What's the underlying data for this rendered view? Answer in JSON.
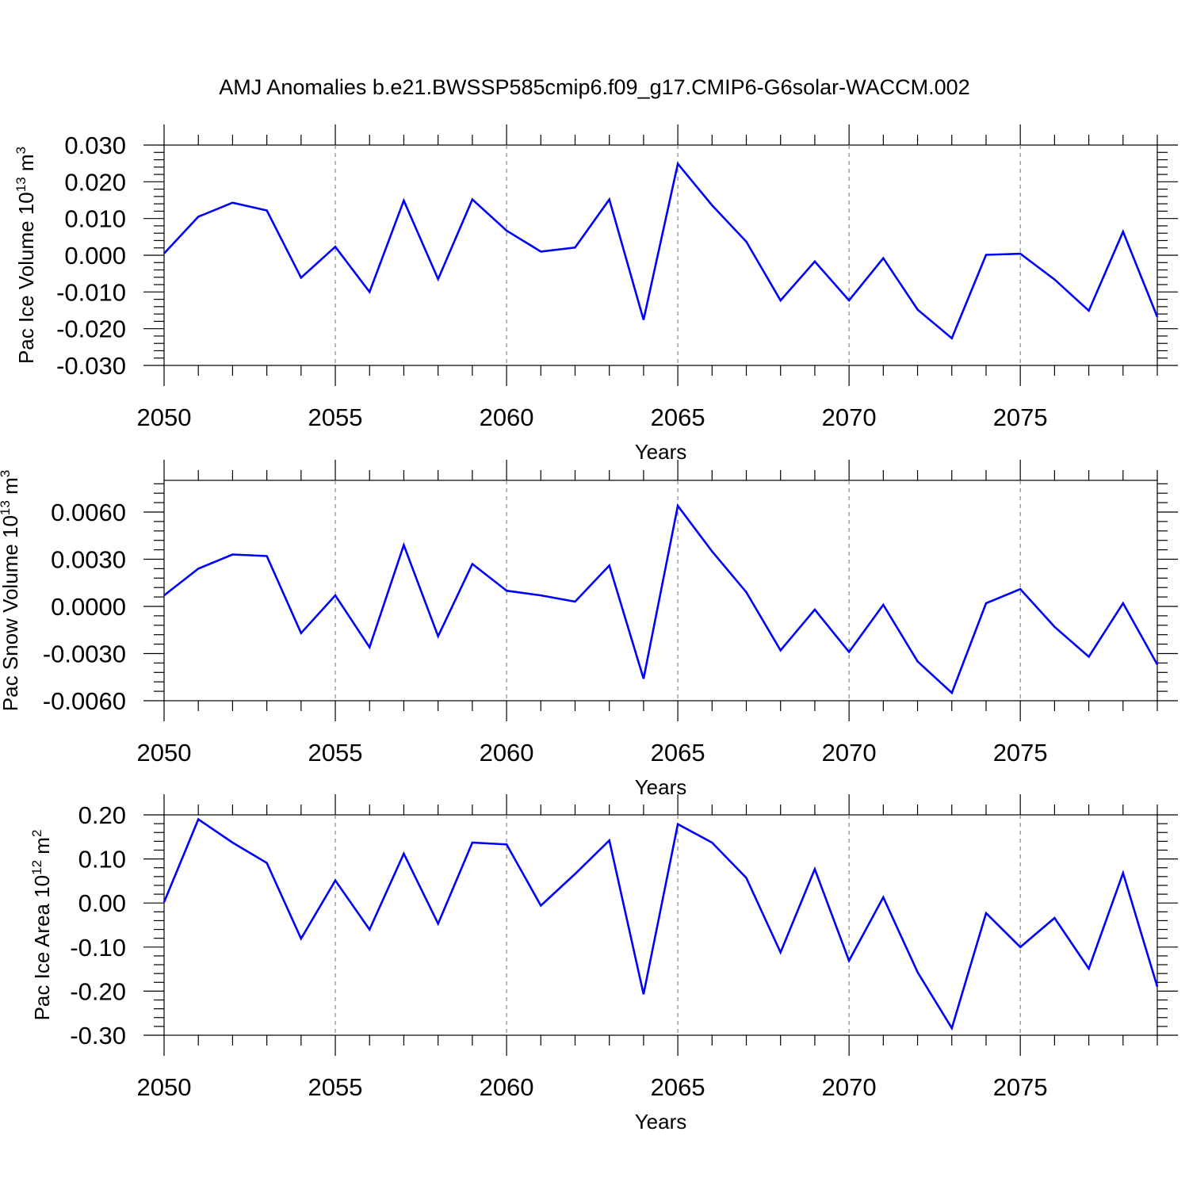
{
  "title": "AMJ Anomalies b.e21.BWSSP585cmip6.f09_g17.CMIP6-G6solar-WACCM.002",
  "colors": {
    "line": "#0000ff",
    "grid": "#888888",
    "axis": "#000000"
  },
  "chart_data": [
    {
      "type": "line",
      "ylabel": "Pac Ice Volume 10",
      "ylabel_exp": "13",
      "ylabel_unit": " m",
      "ylabel_unit_exp": "3",
      "xlabel": "Years",
      "xlim": [
        2050,
        2079
      ],
      "ylim": [
        -0.03,
        0.03
      ],
      "yticks": [
        -0.03,
        -0.02,
        -0.01,
        0.0,
        0.01,
        0.02,
        0.03
      ],
      "ytick_labels": [
        "-0.030",
        "-0.020",
        "-0.010",
        "0.000",
        "0.010",
        "0.020",
        "0.030"
      ],
      "xticks": [
        2050,
        2055,
        2060,
        2065,
        2070,
        2075
      ],
      "xtick_labels": [
        "2050",
        "2055",
        "2060",
        "2065",
        "2070",
        "2075"
      ],
      "grid_x": [
        2055,
        2060,
        2065,
        2070,
        2075
      ],
      "series": [
        {
          "name": "Pac Ice Volume",
          "x": [
            2050,
            2051,
            2052,
            2053,
            2054,
            2055,
            2056,
            2057,
            2058,
            2059,
            2060,
            2061,
            2062,
            2063,
            2064,
            2065,
            2066,
            2067,
            2068,
            2069,
            2070,
            2071,
            2072,
            2073,
            2074,
            2075,
            2076,
            2077,
            2078,
            2079
          ],
          "y": [
            0.0005,
            0.0105,
            0.0143,
            0.0122,
            -0.0061,
            0.0023,
            -0.01,
            0.0149,
            -0.0065,
            0.0152,
            0.0067,
            0.001,
            0.0021,
            0.0152,
            -0.0176,
            0.0249,
            0.0136,
            0.0037,
            -0.0123,
            -0.0017,
            -0.0123,
            -0.0008,
            -0.0148,
            -0.0226,
            0.0001,
            0.0004,
            -0.0066,
            -0.0151,
            0.0064,
            -0.0168
          ]
        }
      ]
    },
    {
      "type": "line",
      "ylabel": "Pac Snow Volume 10",
      "ylabel_exp": "13",
      "ylabel_unit": " m",
      "ylabel_unit_exp": "3",
      "xlabel": "Years",
      "xlim": [
        2050,
        2079
      ],
      "ylim": [
        -0.006,
        0.008
      ],
      "yticks": [
        -0.006,
        -0.003,
        0.0,
        0.003,
        0.006
      ],
      "ytick_labels": [
        "-0.0060",
        "-0.0030",
        "0.0000",
        "0.0030",
        "0.0060"
      ],
      "xticks": [
        2050,
        2055,
        2060,
        2065,
        2070,
        2075
      ],
      "xtick_labels": [
        "2050",
        "2055",
        "2060",
        "2065",
        "2070",
        "2075"
      ],
      "grid_x": [
        2055,
        2060,
        2065,
        2070,
        2075
      ],
      "series": [
        {
          "name": "Pac Snow Volume",
          "x": [
            2050,
            2051,
            2052,
            2053,
            2054,
            2055,
            2056,
            2057,
            2058,
            2059,
            2060,
            2061,
            2062,
            2063,
            2064,
            2065,
            2066,
            2067,
            2068,
            2069,
            2070,
            2071,
            2072,
            2073,
            2074,
            2075,
            2076,
            2077,
            2078,
            2079
          ],
          "y": [
            0.0007,
            0.0024,
            0.0033,
            0.0032,
            -0.0017,
            0.0007,
            -0.0026,
            0.0039,
            -0.0019,
            0.0027,
            0.001,
            0.0007,
            0.0003,
            0.0026,
            -0.0046,
            0.0064,
            0.0035,
            0.0009,
            -0.0028,
            -0.0002,
            -0.0029,
            0.0001,
            -0.0035,
            -0.0055,
            0.0002,
            0.0011,
            -0.0013,
            -0.0032,
            0.0002,
            -0.0037
          ]
        }
      ]
    },
    {
      "type": "line",
      "ylabel": "Pac Ice Area 10",
      "ylabel_exp": "12",
      "ylabel_unit": " m",
      "ylabel_unit_exp": "2",
      "xlabel": "Years",
      "xlim": [
        2050,
        2079
      ],
      "ylim": [
        -0.3,
        0.2
      ],
      "yticks": [
        -0.3,
        -0.2,
        -0.1,
        0.0,
        0.1,
        0.2
      ],
      "ytick_labels": [
        "-0.30",
        "-0.20",
        "-0.10",
        "0.00",
        "0.10",
        "0.20"
      ],
      "xticks": [
        2050,
        2055,
        2060,
        2065,
        2070,
        2075
      ],
      "xtick_labels": [
        "2050",
        "2055",
        "2060",
        "2065",
        "2070",
        "2075"
      ],
      "grid_x": [
        2055,
        2060,
        2065,
        2070,
        2075
      ],
      "series": [
        {
          "name": "Pac Ice Area",
          "x": [
            2050,
            2051,
            2052,
            2053,
            2054,
            2055,
            2056,
            2057,
            2058,
            2059,
            2060,
            2061,
            2062,
            2063,
            2064,
            2065,
            2066,
            2067,
            2068,
            2069,
            2070,
            2071,
            2072,
            2073,
            2074,
            2075,
            2076,
            2077,
            2078,
            2079
          ],
          "y": [
            0.002,
            0.19,
            0.137,
            0.091,
            -0.081,
            0.051,
            -0.06,
            0.112,
            -0.047,
            0.137,
            0.133,
            -0.006,
            0.066,
            0.142,
            -0.207,
            0.179,
            0.137,
            0.057,
            -0.112,
            0.077,
            -0.131,
            0.013,
            -0.157,
            -0.284,
            -0.023,
            -0.1,
            -0.034,
            -0.149,
            0.068,
            -0.19
          ]
        }
      ]
    }
  ]
}
